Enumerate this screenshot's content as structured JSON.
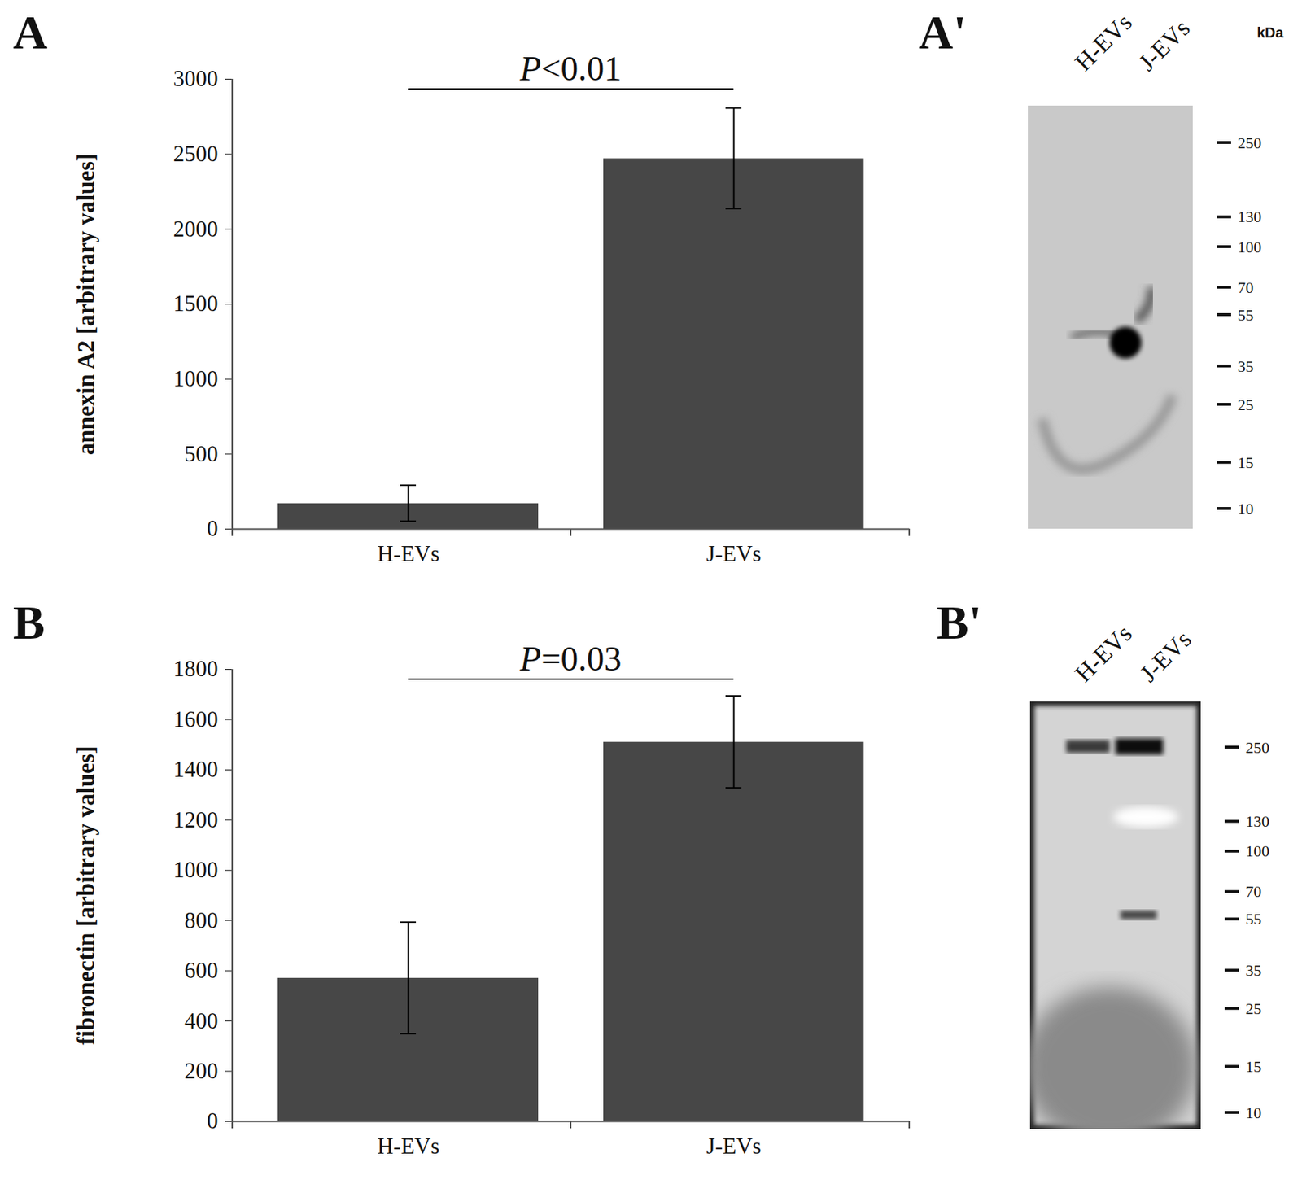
{
  "chart_data": [
    {
      "type": "bar",
      "panel": "A",
      "y_label": "annexin A2 [arbitrary values]",
      "categories": [
        "H-EVs",
        "J-EVs"
      ],
      "values": [
        170,
        2470
      ],
      "errors": [
        120,
        335
      ],
      "color": "#474747",
      "ylim": [
        0,
        3000
      ],
      "yticks": [
        0,
        500,
        1000,
        1500,
        2000,
        2500,
        3000
      ],
      "annotation": {
        "text": "P<0.01",
        "from": "H-EVs",
        "to": "J-EVs"
      }
    },
    {
      "type": "western blot",
      "panel": "A'",
      "lanes": [
        "H-EVs",
        "J-EVs"
      ],
      "unit": "kDa",
      "markers": [
        250,
        130,
        100,
        70,
        55,
        35,
        25,
        15,
        10
      ]
    },
    {
      "type": "bar",
      "panel": "B",
      "y_label": "fibronectin [arbitrary values]",
      "categories": [
        "H-EVs",
        "J-EVs"
      ],
      "values": [
        570,
        1510
      ],
      "errors": [
        222,
        183
      ],
      "color": "#474747",
      "ylim": [
        0,
        1800
      ],
      "yticks": [
        0,
        200,
        400,
        600,
        800,
        1000,
        1200,
        1400,
        1600,
        1800
      ],
      "annotation": {
        "text": "P=0.03",
        "from": "H-EVs",
        "to": "J-EVs"
      }
    },
    {
      "type": "western blot",
      "panel": "B'",
      "lanes": [
        "H-EVs",
        "J-EVs"
      ],
      "markers": [
        250,
        130,
        100,
        70,
        55,
        35,
        25,
        15,
        10
      ]
    }
  ]
}
